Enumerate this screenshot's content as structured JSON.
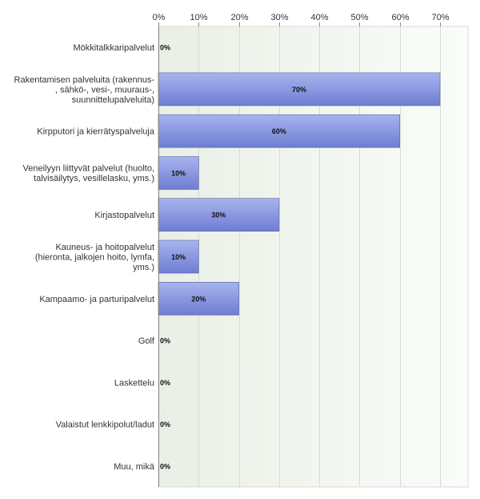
{
  "chart_data": {
    "type": "bar",
    "orientation": "horizontal",
    "xlim": [
      0,
      75
    ],
    "ticks": [
      "0%",
      "10%",
      "20%",
      "30%",
      "40%",
      "50%",
      "60%",
      "70%"
    ],
    "tick_values": [
      0,
      10,
      20,
      30,
      40,
      50,
      60,
      70
    ],
    "grid": true,
    "categories": [
      [
        "Mökkitalkkaripalvelut"
      ],
      [
        "Rakentamisen palveluita (rakennus-",
        ", sähkö-, vesi-, muuraus-,",
        "suunnittelupalveluita)"
      ],
      [
        "Kirpputori ja kierrätyspalveluja"
      ],
      [
        "Veneilyyn liittyvät palvelut (huolto,",
        "talvisäilytys, vesillelasku, yms.)"
      ],
      [
        "Kirjastopalvelut"
      ],
      [
        "Kauneus- ja hoitopalvelut",
        "(hieronta, jalkojen hoito, lymfa,",
        "yms.)"
      ],
      [
        "Kampaamo- ja parturipalvelut"
      ],
      [
        "Golf"
      ],
      [
        "Laskettelu"
      ],
      [
        "Valaistut lenkkipolut/ladut"
      ],
      [
        "Muu, mikä"
      ]
    ],
    "values": [
      0,
      70,
      60,
      10,
      30,
      10,
      20,
      0,
      0,
      0,
      0
    ],
    "value_labels": [
      "0%",
      "70%",
      "60%",
      "10%",
      "30%",
      "10%",
      "20%",
      "0%",
      "0%",
      "0%",
      "0%"
    ],
    "colors": {
      "bar_top": "#a8b4ee",
      "bar_bottom": "#6e7dd2",
      "bar_stroke": "#55619e",
      "plot_bg_left": "#e9efe6",
      "plot_bg_right": "#fafcf9",
      "grid": "#d6dcd3",
      "axis": "#8a8a8a"
    }
  }
}
